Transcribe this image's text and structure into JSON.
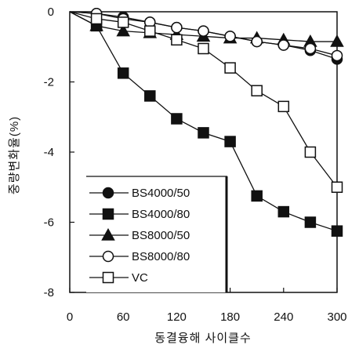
{
  "chart_data": {
    "type": "line",
    "xlabel": "동결융해 사이클수",
    "ylabel": "중량변화율(%)",
    "xlim": [
      0,
      300
    ],
    "ylim": [
      -8,
      0
    ],
    "xticks": [
      0,
      60,
      120,
      180,
      240,
      300
    ],
    "yticks": [
      0,
      -2,
      -4,
      -6,
      -8
    ],
    "grid": false,
    "legend_position": "bottom-left",
    "series": [
      {
        "name": "BS4000/50",
        "marker": "circle-filled",
        "x": [
          0,
          30,
          60,
          90,
          120,
          150,
          180,
          210,
          240,
          270,
          300
        ],
        "y": [
          0,
          -0.05,
          -0.15,
          -0.3,
          -0.45,
          -0.55,
          -0.7,
          -0.85,
          -0.95,
          -1.1,
          -1.35
        ]
      },
      {
        "name": "BS4000/80",
        "marker": "square-filled",
        "x": [
          0,
          30,
          60,
          90,
          120,
          150,
          180,
          210,
          240,
          270,
          300
        ],
        "y": [
          0,
          -0.4,
          -1.75,
          -2.4,
          -3.05,
          -3.45,
          -3.7,
          -5.25,
          -5.7,
          -6.0,
          -6.25
        ]
      },
      {
        "name": "BS8000/50",
        "marker": "triangle-filled",
        "x": [
          0,
          30,
          60,
          90,
          120,
          150,
          180,
          210,
          240,
          270,
          300
        ],
        "y": [
          0,
          -0.4,
          -0.55,
          -0.6,
          -0.65,
          -0.7,
          -0.75,
          -0.75,
          -0.8,
          -0.85,
          -0.85
        ]
      },
      {
        "name": "BS8000/80",
        "marker": "circle-open",
        "x": [
          0,
          30,
          60,
          90,
          120,
          150,
          180,
          210,
          240,
          270,
          300
        ],
        "y": [
          0,
          -0.05,
          -0.2,
          -0.3,
          -0.45,
          -0.55,
          -0.7,
          -0.85,
          -0.95,
          -1.05,
          -1.25
        ]
      },
      {
        "name": "VC",
        "marker": "square-open",
        "x": [
          0,
          30,
          60,
          90,
          120,
          150,
          180,
          210,
          240,
          270,
          300
        ],
        "y": [
          0,
          -0.2,
          -0.3,
          -0.55,
          -0.8,
          -1.05,
          -1.6,
          -2.25,
          -2.7,
          -4.0,
          -5.0
        ]
      }
    ]
  }
}
